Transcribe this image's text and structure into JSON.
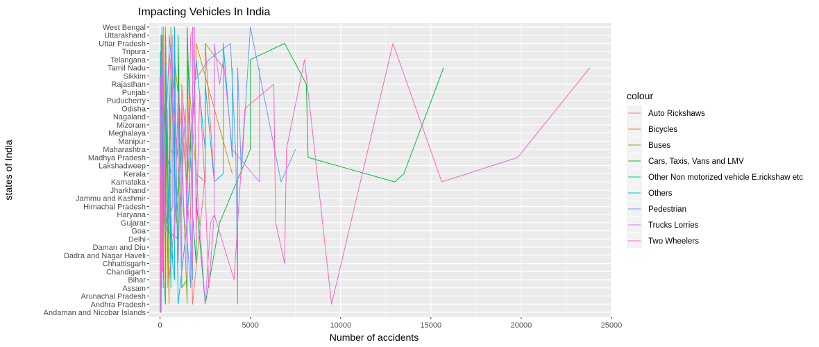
{
  "chart_data": {
    "type": "line",
    "title": "Impacting Vehicles In India",
    "xlabel": "Number of accidents",
    "ylabel": "states of India",
    "xlim": [
      -600,
      25000
    ],
    "x_ticks": [
      0,
      5000,
      10000,
      15000,
      20000,
      25000
    ],
    "grid": true,
    "legend": {
      "title": "colour",
      "placement": "right"
    },
    "categories": [
      "Andaman and Nicobar Islands",
      "Andhra Pradesh",
      "Arunachal Pradesh",
      "Assam",
      "Bihar",
      "Chandigarh",
      "Chhattisgarh",
      "Dadra and Nagar Haveli",
      "Daman and Diu",
      "Delhi",
      "Goa",
      "Gujarat",
      "Haryana",
      "Himachal Pradesh",
      "Jammu and Kashmir",
      "Jharkhand",
      "Karnataka",
      "Kerala",
      "Lakshadweep",
      "Madhya Pradesh",
      "Maharashtra",
      "Manipur",
      "Meghalaya",
      "Mizoram",
      "Nagaland",
      "Odisha",
      "Puducherry",
      "Punjab",
      "Rajasthan",
      "Sikkim",
      "Tamil Nadu",
      "Telangana",
      "Tripura",
      "Uttar Pradesh",
      "Uttarakhand",
      "West Bengal"
    ],
    "series": [
      {
        "name": "Auto Rickshaws",
        "color": "#F8766D",
        "values": [
          10,
          1800,
          5,
          300,
          500,
          20,
          600,
          10,
          5,
          200,
          100,
          800,
          300,
          50,
          150,
          400,
          3000,
          2500,
          0,
          1500,
          1200,
          30,
          10,
          5,
          10,
          400,
          30,
          200,
          1200,
          5,
          3000,
          1500,
          50,
          2500,
          150,
          300
        ]
      },
      {
        "name": "Bicycles",
        "color": "#D39200",
        "values": [
          5,
          500,
          5,
          200,
          300,
          10,
          300,
          5,
          5,
          100,
          50,
          400,
          150,
          10,
          20,
          200,
          1500,
          4000,
          0,
          800,
          600,
          20,
          5,
          5,
          5,
          300,
          50,
          100,
          500,
          2,
          2000,
          800,
          30,
          2000,
          80,
          200
        ]
      },
      {
        "name": "Buses",
        "color": "#93AA00",
        "values": [
          10,
          1500,
          20,
          400,
          600,
          30,
          500,
          10,
          10,
          300,
          80,
          900,
          400,
          200,
          300,
          400,
          2500,
          2000,
          0,
          1500,
          1200,
          40,
          20,
          10,
          15,
          500,
          40,
          300,
          1500,
          10,
          3500,
          1500,
          60,
          2500,
          300,
          600
        ]
      },
      {
        "name": "Cars, Taxis, Vans and LMV",
        "color": "#00BA38",
        "values": [
          30,
          2500,
          30,
          1200,
          1500,
          50,
          2000,
          30,
          20,
          1000,
          400,
          3300,
          1800,
          1000,
          2000,
          1000,
          13000,
          13500,
          0,
          8200,
          5000,
          200,
          80,
          20,
          40,
          1500,
          300,
          1500,
          8100,
          50,
          15700,
          5000,
          300,
          6900,
          1000,
          1500
        ]
      },
      {
        "name": "Other Non motorized vehicle E.rickshaw etc",
        "color": "#00C19F",
        "values": [
          5,
          300,
          5,
          100,
          200,
          10,
          100,
          5,
          5,
          150,
          20,
          300,
          100,
          10,
          20,
          100,
          800,
          600,
          0,
          400,
          300,
          10,
          5,
          5,
          5,
          100,
          20,
          50,
          300,
          2,
          600,
          300,
          20,
          800,
          50,
          100
        ]
      },
      {
        "name": "Others",
        "color": "#00B9E3",
        "values": [
          20,
          1000,
          10,
          600,
          800,
          30,
          700,
          10,
          10,
          500,
          200,
          1500,
          600,
          200,
          300,
          500,
          3000,
          3500,
          0,
          4000,
          2500,
          50,
          20,
          10,
          20,
          800,
          100,
          500,
          2500,
          20,
          4000,
          2000,
          100,
          3500,
          300,
          800
        ]
      },
      {
        "name": "Pedestrian",
        "color": "#619CFF",
        "values": [
          20,
          4300,
          30,
          1700,
          1800,
          60,
          1000,
          20,
          10,
          1500,
          300,
          1700,
          1300,
          400,
          500,
          900,
          6700,
          4500,
          0,
          4200,
          7500,
          100,
          50,
          20,
          30,
          1200,
          200,
          800,
          1800,
          20,
          4300,
          2700,
          100,
          3900,
          500,
          5000
        ]
      },
      {
        "name": "Trucks Lorries",
        "color": "#DB72FB",
        "values": [
          10,
          2500,
          20,
          1200,
          1500,
          40,
          1800,
          20,
          10,
          800,
          300,
          2800,
          3000,
          700,
          1500,
          1200,
          5500,
          2000,
          0,
          5500,
          4000,
          100,
          80,
          30,
          40,
          1400,
          100,
          1000,
          3300,
          30,
          5500,
          3500,
          100,
          3000,
          700,
          1800
        ]
      },
      {
        "name": "Two Wheelers",
        "color": "#FF61C3",
        "values": [
          60,
          9500,
          50,
          2700,
          4100,
          150,
          6900,
          100,
          40,
          2000,
          2000,
          6400,
          3000,
          1200,
          1500,
          2500,
          15600,
          17000,
          0,
          19800,
          7000,
          300,
          100,
          50,
          100,
          4700,
          1200,
          2200,
          6300,
          100,
          23800,
          8000,
          500,
          12900,
          1700,
          1900
        ]
      }
    ]
  }
}
